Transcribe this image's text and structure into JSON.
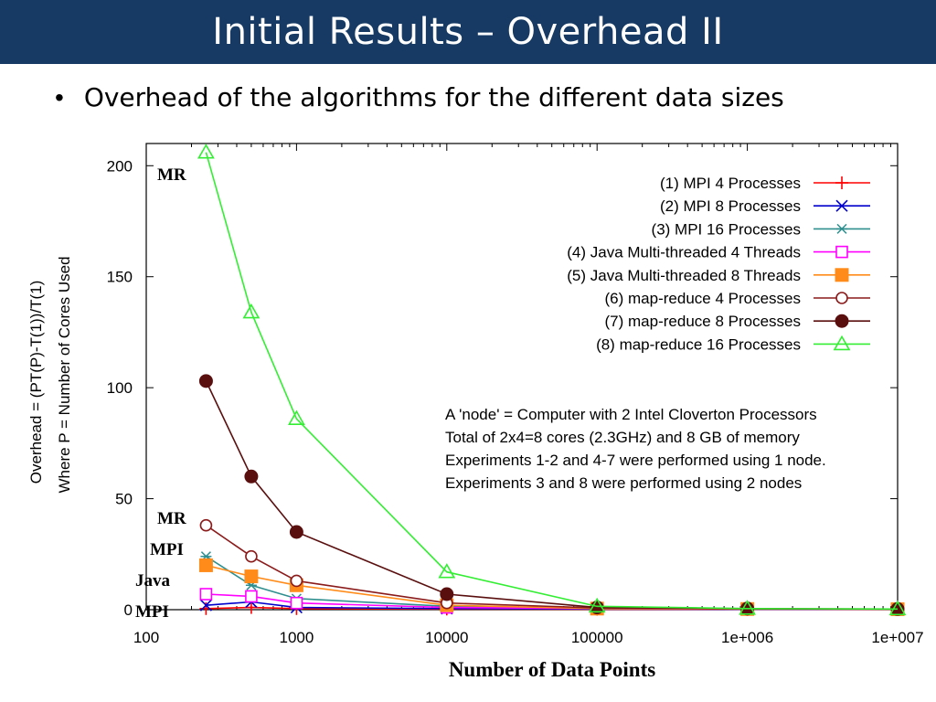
{
  "slide": {
    "title": "Initial Results – Overhead II",
    "bullet": "Overhead of the algorithms for the different data sizes"
  },
  "chart_data": {
    "type": "line",
    "x_scale": "log",
    "xlim": [
      100,
      10000000
    ],
    "ylim": [
      0,
      210
    ],
    "xlabel": "Number of Data Points",
    "ylabel": [
      "Overhead = (PT(P)-T(1))/T(1)",
      "Where P = Number of Cores Used"
    ],
    "x_tick_labels": [
      "100",
      "1000",
      "10000",
      "100000",
      "1e+006",
      "1e+007"
    ],
    "y_tick_labels": [
      "200",
      "150",
      "100",
      "50",
      "0"
    ],
    "legend_position": "top-right",
    "series": [
      {
        "name": "(1) MPI 4 Processes",
        "color": "#ff0000",
        "marker": "plus",
        "points": [
          [
            250,
            0.5
          ],
          [
            500,
            1
          ],
          [
            1000,
            0.5
          ],
          [
            10000,
            0.3
          ],
          [
            100000,
            0.2
          ],
          [
            1000000,
            0.1
          ],
          [
            10000000,
            0.1
          ]
        ]
      },
      {
        "name": "(2) MPI 8 Processes",
        "color": "#0000cc",
        "marker": "x",
        "points": [
          [
            250,
            2
          ],
          [
            500,
            3.5
          ],
          [
            1000,
            1
          ],
          [
            10000,
            0.5
          ],
          [
            100000,
            0.3
          ],
          [
            1000000,
            0.2
          ],
          [
            10000000,
            0.1
          ]
        ]
      },
      {
        "name": "(3) MPI 16 Processes",
        "color": "#2f8f8f",
        "marker": "star",
        "points": [
          [
            250,
            24
          ],
          [
            500,
            11
          ],
          [
            1000,
            5
          ],
          [
            10000,
            1.5
          ],
          [
            100000,
            0.5
          ],
          [
            1000000,
            0.3
          ],
          [
            10000000,
            0.2
          ]
        ]
      },
      {
        "name": "(4) Java Multi-threaded 4 Threads",
        "color": "#ff00ff",
        "marker": "square-open",
        "points": [
          [
            250,
            7
          ],
          [
            500,
            6
          ],
          [
            1000,
            3
          ],
          [
            10000,
            1
          ],
          [
            100000,
            0.5
          ],
          [
            1000000,
            0.3
          ],
          [
            10000000,
            0.2
          ]
        ]
      },
      {
        "name": "(5) Java Multi-threaded 8 Threads",
        "color": "#ff8c1a",
        "marker": "square-filled",
        "points": [
          [
            250,
            20
          ],
          [
            500,
            15
          ],
          [
            1000,
            11
          ],
          [
            10000,
            2
          ],
          [
            100000,
            0.5
          ],
          [
            1000000,
            0.3
          ],
          [
            10000000,
            0.2
          ]
        ]
      },
      {
        "name": "(6) map-reduce 4 Processes",
        "color": "#8b1a1a",
        "marker": "circle-open",
        "points": [
          [
            250,
            38
          ],
          [
            500,
            24
          ],
          [
            1000,
            13
          ],
          [
            10000,
            3
          ],
          [
            100000,
            0.8
          ],
          [
            1000000,
            0.4
          ],
          [
            10000000,
            0.2
          ]
        ]
      },
      {
        "name": "(7) map-reduce 8 Processes",
        "color": "#5a0f0f",
        "marker": "circle-filled",
        "points": [
          [
            250,
            103
          ],
          [
            500,
            60
          ],
          [
            1000,
            35
          ],
          [
            10000,
            7
          ],
          [
            100000,
            1
          ],
          [
            1000000,
            0.5
          ],
          [
            10000000,
            0.3
          ]
        ]
      },
      {
        "name": "(8) map-reduce 16 Processes",
        "color": "#33ee33",
        "marker": "triangle-open",
        "points": [
          [
            250,
            206
          ],
          [
            500,
            134
          ],
          [
            1000,
            86
          ],
          [
            10000,
            17
          ],
          [
            100000,
            1.5
          ],
          [
            1000000,
            0.5
          ],
          [
            10000000,
            0.3
          ]
        ]
      }
    ],
    "note": [
      "A 'node' = Computer with 2 Intel Cloverton Processors",
      "Total of 2x4=8 cores (2.3GHz) and 8 GB of memory",
      "Experiments 1-2 and 4-7 were performed using 1 node.",
      "Experiments 3 and 8 were performed using 2 nodes"
    ],
    "annotations": [
      {
        "text": "MR",
        "at": "top"
      },
      {
        "text": "MR",
        "at": "mid"
      },
      {
        "text": "MPI",
        "at": "mid"
      },
      {
        "text": "Java",
        "at": "low"
      },
      {
        "text": "MPI",
        "at": "bottom"
      }
    ]
  }
}
